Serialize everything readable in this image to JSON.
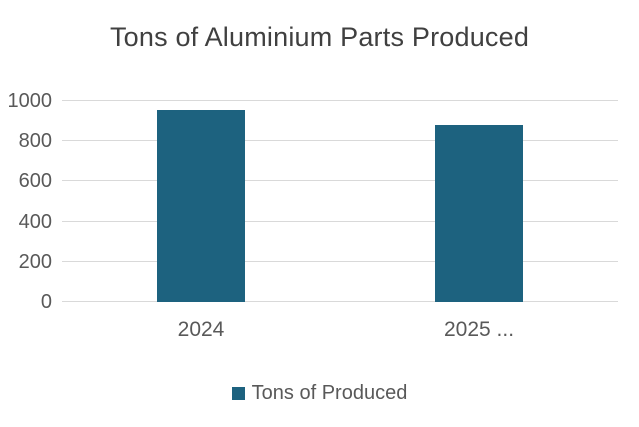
{
  "chart_data": {
    "type": "bar",
    "title": "Tons of Aluminium Parts Produced",
    "categories": [
      "2024",
      "2025 ..."
    ],
    "values": [
      955,
      880
    ],
    "series": [
      {
        "name": "Tons of Produced",
        "values": [
          955,
          880
        ]
      }
    ],
    "legend_label": "Tons of Produced",
    "xlabel": "",
    "ylabel": "",
    "ylim": [
      0,
      1000
    ],
    "yticks": [
      0,
      200,
      400,
      600,
      800,
      1000
    ],
    "grid": true,
    "legend_position": "bottom",
    "colors": {
      "bar": "#1d627f",
      "title_text": "#404040",
      "axis_text": "#595959",
      "gridline": "#d9d9d9",
      "background": "#ffffff"
    }
  }
}
